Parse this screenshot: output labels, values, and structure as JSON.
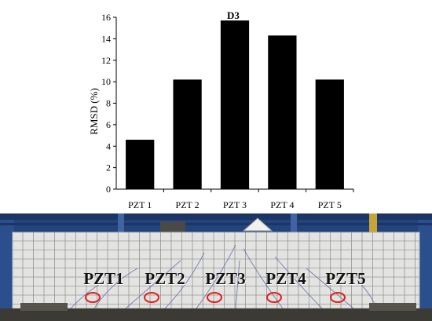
{
  "chart_data": {
    "type": "bar",
    "title": "D3",
    "xlabel": "",
    "ylabel": "RMSD (%)",
    "categories": [
      "PZT 1",
      "PZT 2",
      "PZT 3",
      "PZT 4",
      "PZT 5"
    ],
    "values": [
      4.6,
      10.2,
      15.7,
      14.3,
      10.2
    ],
    "ylim": [
      0,
      16
    ],
    "yticks": [
      "0",
      "2",
      "4",
      "6",
      "8",
      "10",
      "12",
      "14",
      "16"
    ],
    "grid": false,
    "bar_color": "#000000"
  },
  "photo": {
    "labels": [
      "PZT1",
      "PZT2",
      "PZT3",
      "PZT4",
      "PZT5"
    ],
    "marker_color": "#e0201c",
    "background_color": "#23437a",
    "beam_color": "#e3e3e1"
  }
}
